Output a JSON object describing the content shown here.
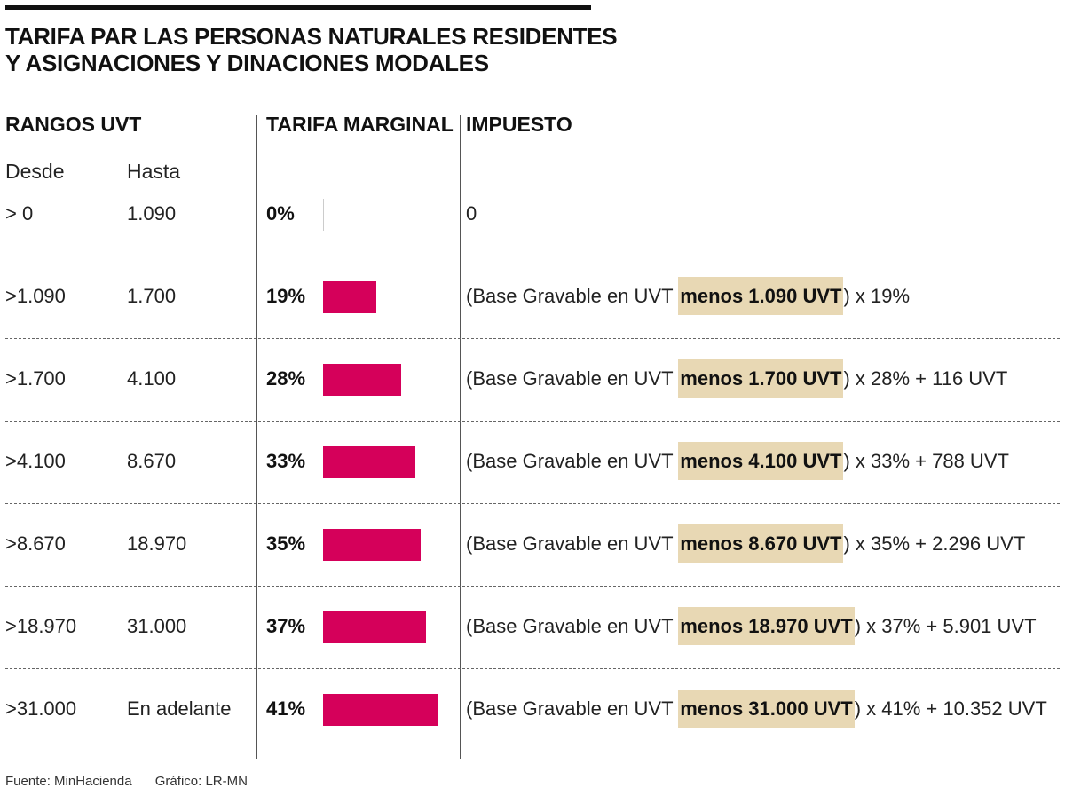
{
  "title_lines": [
    "TARIFA PAR LAS PERSONAS NATURALES RESIDENTES",
    "Y ASIGNACIONES Y DINACIONES MODALES"
  ],
  "headers": {
    "rangos": "RANGOS UVT",
    "tarifa": "TARIFA MARGINAL",
    "impuesto": "IMPUESTO",
    "desde": "Desde",
    "hasta": "Hasta"
  },
  "colors": {
    "bar": "#d5005a",
    "highlight": "#e8d8b4"
  },
  "chart_data": {
    "type": "bar",
    "orientation": "horizontal",
    "x_range": [
      0,
      41
    ],
    "grid": false,
    "legend": "none",
    "rows": [
      {
        "desde": "> 0",
        "hasta": "1.090",
        "rate": 0,
        "rate_label": "0%",
        "impuesto_pre": "0",
        "impuesto_hl": "",
        "impuesto_post": ""
      },
      {
        "desde": ">1.090",
        "hasta": "1.700",
        "rate": 19,
        "rate_label": "19%",
        "impuesto_pre": "(Base Gravable en UVT ",
        "impuesto_hl": "menos 1.090 UVT",
        "impuesto_post": ") x 19%"
      },
      {
        "desde": ">1.700",
        "hasta": "4.100",
        "rate": 28,
        "rate_label": "28%",
        "impuesto_pre": "(Base Gravable en UVT ",
        "impuesto_hl": "menos 1.700 UVT",
        "impuesto_post": ") x 28% + 116 UVT"
      },
      {
        "desde": ">4.100",
        "hasta": "8.670",
        "rate": 33,
        "rate_label": "33%",
        "impuesto_pre": "(Base Gravable en UVT ",
        "impuesto_hl": "menos 4.100 UVT",
        "impuesto_post": ") x 33% + 788 UVT"
      },
      {
        "desde": ">8.670",
        "hasta": "18.970",
        "rate": 35,
        "rate_label": "35%",
        "impuesto_pre": "(Base Gravable en UVT ",
        "impuesto_hl": "menos 8.670 UVT",
        "impuesto_post": ") x 35% + 2.296 UVT"
      },
      {
        "desde": ">18.970",
        "hasta": "31.000",
        "rate": 37,
        "rate_label": "37%",
        "impuesto_pre": "(Base Gravable en UVT ",
        "impuesto_hl": "menos 18.970 UVT",
        "impuesto_post": ") x 37% + 5.901 UVT"
      },
      {
        "desde": ">31.000",
        "hasta": "En adelante",
        "rate": 41,
        "rate_label": "41%",
        "impuesto_pre": "(Base Gravable en UVT ",
        "impuesto_hl": "menos 31.000 UVT",
        "impuesto_post": ") x 41% + 10.352 UVT"
      }
    ]
  },
  "footer": {
    "source": "Fuente: MinHacienda",
    "credit": "Gráfico: LR-MN"
  }
}
